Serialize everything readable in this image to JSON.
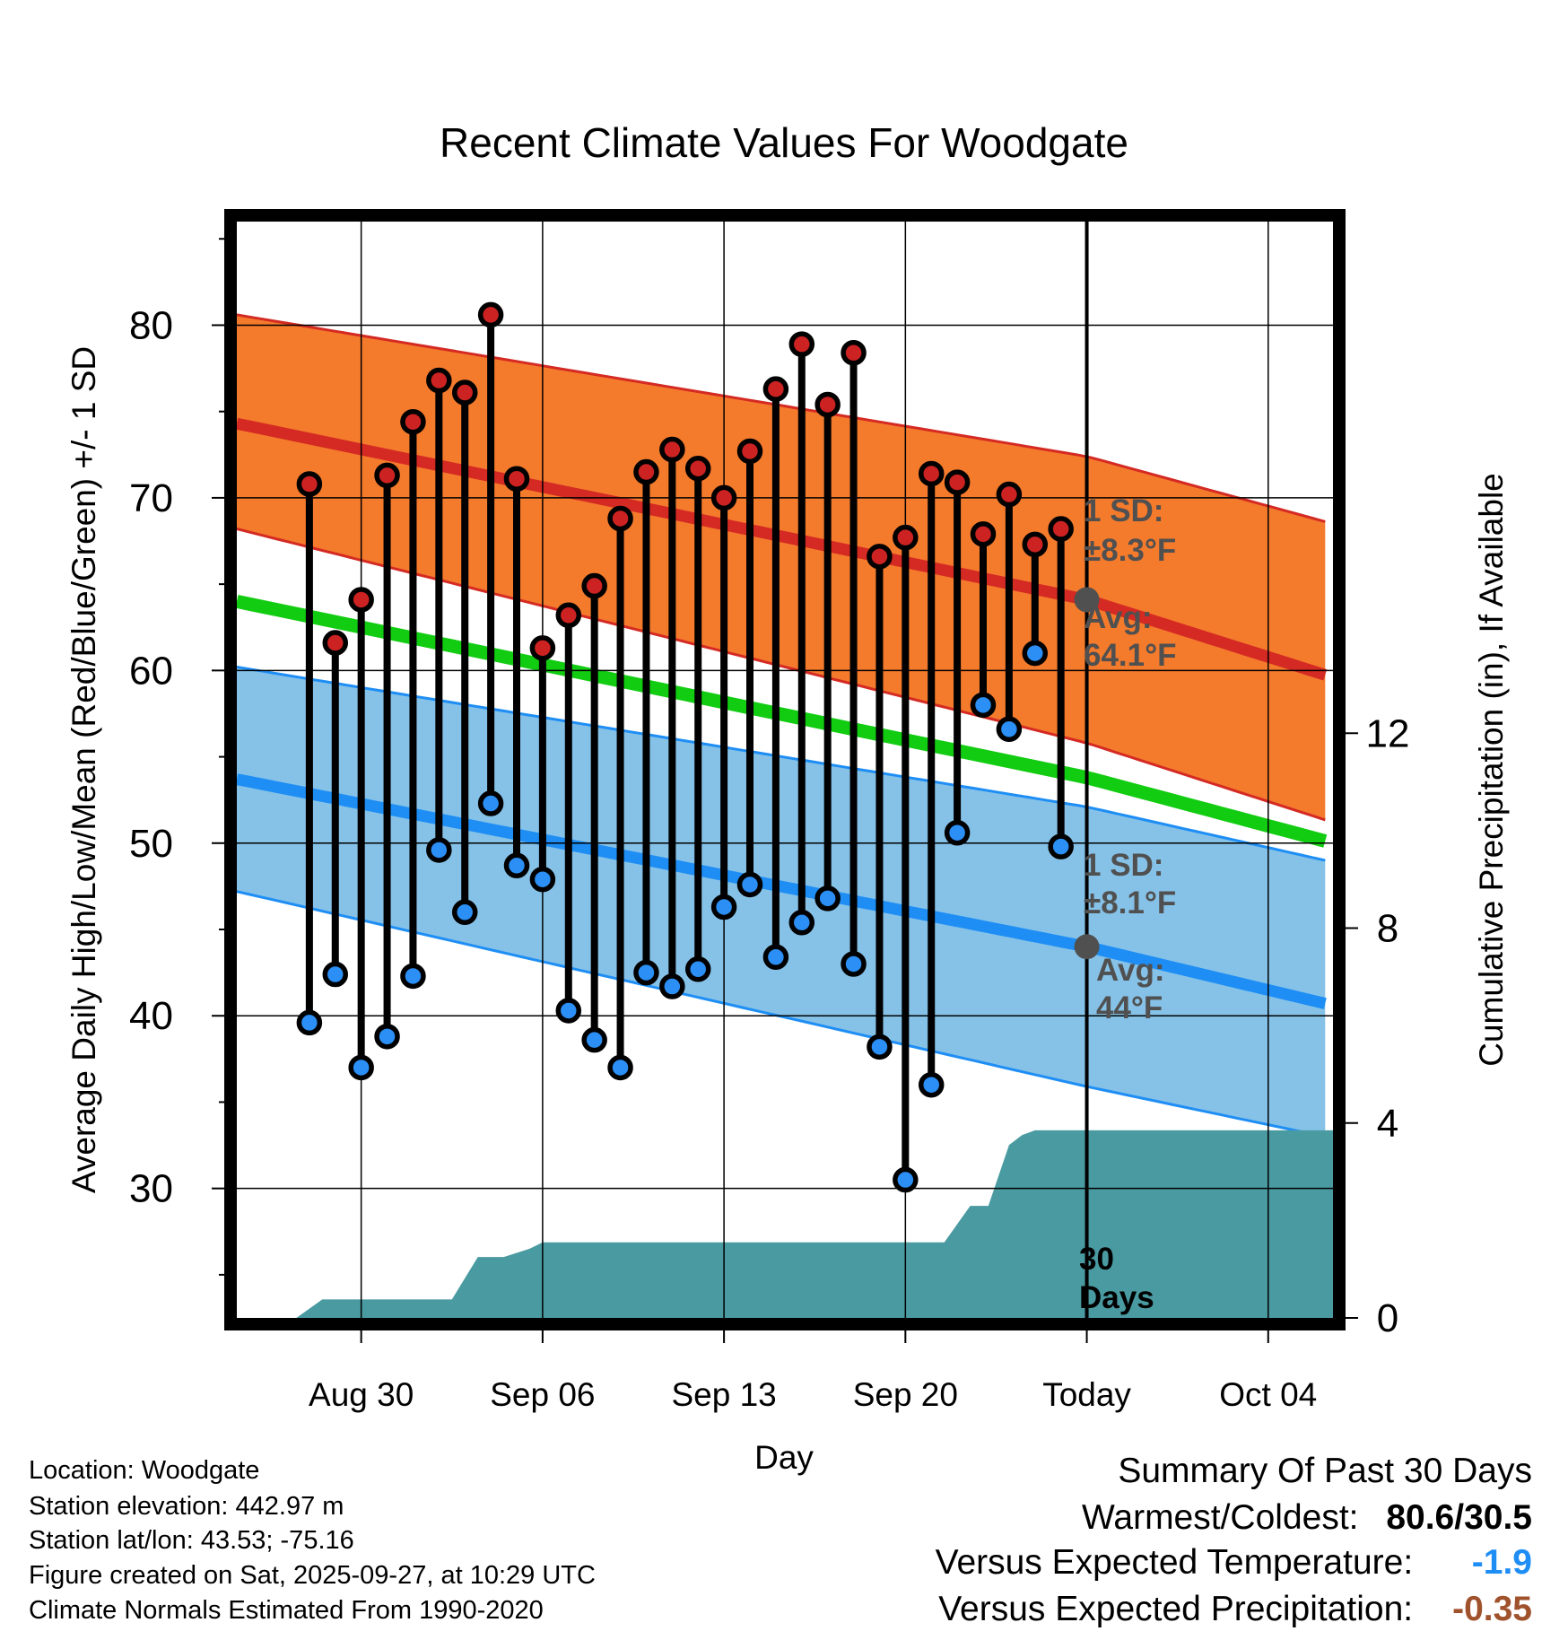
{
  "chart_data": {
    "type": "line",
    "title": "Recent Climate Values For Woodgate",
    "xlabel": "Day",
    "ylabel": "Average Daily High/Low/Mean (Red/Blue/Green) +/- 1 SD",
    "y2label": "Cumulative Precipitation (in), If Available",
    "ylim": [
      22.5,
      86
    ],
    "y2lim": [
      0,
      22.5
    ],
    "x_range_days": [
      -32.8,
      9.5
    ],
    "x_ticks": [
      {
        "day": -28,
        "label": "Aug 30"
      },
      {
        "day": -21,
        "label": "Sep 06"
      },
      {
        "day": -14,
        "label": "Sep 13"
      },
      {
        "day": -7,
        "label": "Sep 20"
      },
      {
        "day": 0,
        "label": "Today"
      },
      {
        "day": 7,
        "label": "Oct 04"
      }
    ],
    "y_ticks": [
      30,
      40,
      50,
      60,
      70,
      80
    ],
    "y2_ticks": [
      0,
      4,
      8,
      12
    ],
    "normals": {
      "days": [
        -32.8,
        0,
        9.5
      ],
      "high_avg": [
        74.3,
        64.1,
        59.6
      ],
      "high_upper": [
        80.6,
        72.4,
        68.5
      ],
      "high_lower": [
        68.2,
        55.8,
        51.2
      ],
      "low_avg": [
        53.7,
        44.0,
        40.6
      ],
      "low_upper": [
        60.2,
        52.1,
        48.9
      ],
      "low_lower": [
        47.2,
        35.9,
        32.9
      ],
      "mean": [
        64.0,
        53.8,
        50.0
      ]
    },
    "series": [
      {
        "name": "Daily High",
        "color": "#cc2222",
        "values": [
          70.8,
          61.6,
          64.1,
          71.3,
          74.4,
          76.8,
          76.1,
          80.6,
          71.1,
          61.3,
          63.2,
          64.9,
          68.8,
          71.5,
          72.8,
          71.7,
          70.0,
          72.7,
          76.3,
          78.9,
          75.4,
          78.4,
          66.6,
          67.7,
          71.4,
          70.9,
          67.9,
          70.2,
          67.3,
          68.2
        ]
      },
      {
        "name": "Daily Low",
        "color": "#2b8ff5",
        "values": [
          39.6,
          42.4,
          37.0,
          38.8,
          42.3,
          49.6,
          46.0,
          52.3,
          48.7,
          47.9,
          40.3,
          38.6,
          37.0,
          42.5,
          41.7,
          42.7,
          46.3,
          47.6,
          43.4,
          45.4,
          46.8,
          43.0,
          38.2,
          30.5,
          36.0,
          50.6,
          58.0,
          56.6,
          61.0,
          49.8
        ]
      }
    ],
    "days": [
      -30,
      -29,
      -28,
      -27,
      -26,
      -25,
      -24,
      -23,
      -22,
      -21,
      -20,
      -19,
      -18,
      -17,
      -16,
      -15,
      -14,
      -13,
      -12,
      -11,
      -10,
      -9,
      -8,
      -7,
      -6,
      -5,
      -4,
      -3,
      -2,
      -1
    ],
    "precip": {
      "name": "Cumulative Precipitation",
      "days": [
        -30.5,
        -29.5,
        -25.5,
        -24.5,
        -23.5,
        -22.5,
        -21.5,
        -21.0,
        -7.0,
        -5.5,
        -4.5,
        -3.8,
        -3.0,
        -2.5,
        -2.0,
        -1.0,
        0,
        9.5
      ],
      "values": [
        0,
        0.38,
        0.38,
        0.38,
        1.25,
        1.25,
        1.42,
        1.55,
        1.55,
        1.55,
        2.3,
        2.3,
        3.55,
        3.75,
        3.85,
        3.85,
        3.85,
        3.85
      ]
    },
    "annotations": {
      "high_sd": "1 SD:",
      "high_sd_val": "±8.3°F",
      "high_avg_label": "Avg:",
      "high_avg_val": "64.1°F",
      "low_sd": "1 SD:",
      "low_sd_val": "±8.1°F",
      "low_avg_label": "Avg:",
      "low_avg_val": "44°F",
      "days_num": "30",
      "days_word": "Days"
    },
    "colors": {
      "high_band": "#f47a2c",
      "high_line": "#d42a23",
      "low_band": "#86c2e8",
      "low_line": "#1e8ef5",
      "mean_line": "#12cc12",
      "precip_fill": "#4a9aa2",
      "annotation": "#505050"
    }
  },
  "info": {
    "location": "Location: Woodgate",
    "elevation": "Station elevation: 442.97 m",
    "latlon": "Station lat/lon: 43.53; -75.16",
    "created": "Figure created on Sat, 2025-09-27, at 10:29 UTC",
    "normals": "Climate Normals Estimated From 1990-2020"
  },
  "summary": {
    "title": "Summary Of Past 30 Days",
    "warmest_label": "Warmest/Coldest:",
    "warmest_value": "80.6/30.5",
    "temp_label": "Versus Expected Temperature:",
    "temp_value": "-1.9",
    "temp_color": "#1e8ef5",
    "precip_label": "Versus Expected Precipitation:",
    "precip_value": "-0.35",
    "precip_color": "#a0522d"
  }
}
